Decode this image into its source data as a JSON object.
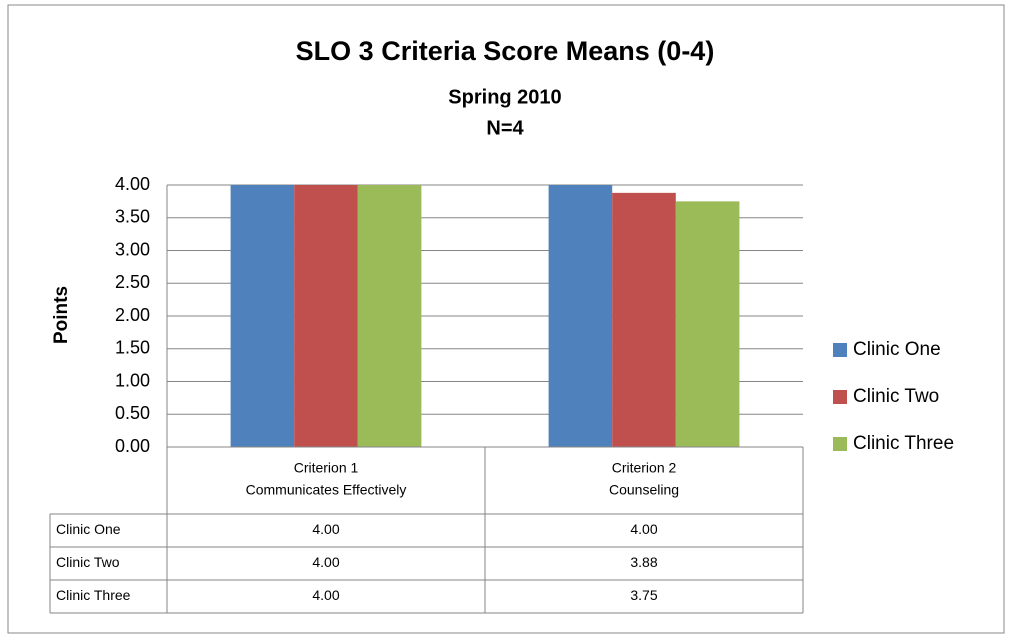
{
  "chart_data": {
    "type": "bar",
    "title": "SLO 3 Criteria Score Means (0-4)",
    "subtitle": [
      "Spring 2010",
      "N=4"
    ],
    "y_label": "Points",
    "categories": [
      [
        "Criterion 1",
        "Communicates Effectively"
      ],
      [
        "Criterion 2",
        "Counseling"
      ]
    ],
    "series": [
      {
        "name": "Clinic One",
        "color": "#4f81bd",
        "values": [
          4,
          4
        ],
        "value_labels": [
          "4.00",
          "4.00"
        ]
      },
      {
        "name": "Clinic Two",
        "color": "#c0504d",
        "values": [
          4,
          3.88
        ],
        "value_labels": [
          "4.00",
          "3.88"
        ]
      },
      {
        "name": "Clinic Three",
        "color": "#9bbb59",
        "values": [
          4,
          3.75
        ],
        "value_labels": [
          "4.00",
          "3.75"
        ]
      }
    ],
    "ylim": [
      0,
      4
    ],
    "yticks": [
      {
        "value": 0,
        "label": "0.00"
      },
      {
        "value": 0.5,
        "label": "0.50"
      },
      {
        "value": 1,
        "label": "1.00"
      },
      {
        "value": 1.5,
        "label": "1.50"
      },
      {
        "value": 2,
        "label": "2.00"
      },
      {
        "value": 2.5,
        "label": "2.50"
      },
      {
        "value": 3,
        "label": "3.00"
      },
      {
        "value": 3.5,
        "label": "3.50"
      },
      {
        "value": 4,
        "label": "4.00"
      }
    ],
    "grid": true,
    "legend": "right"
  }
}
